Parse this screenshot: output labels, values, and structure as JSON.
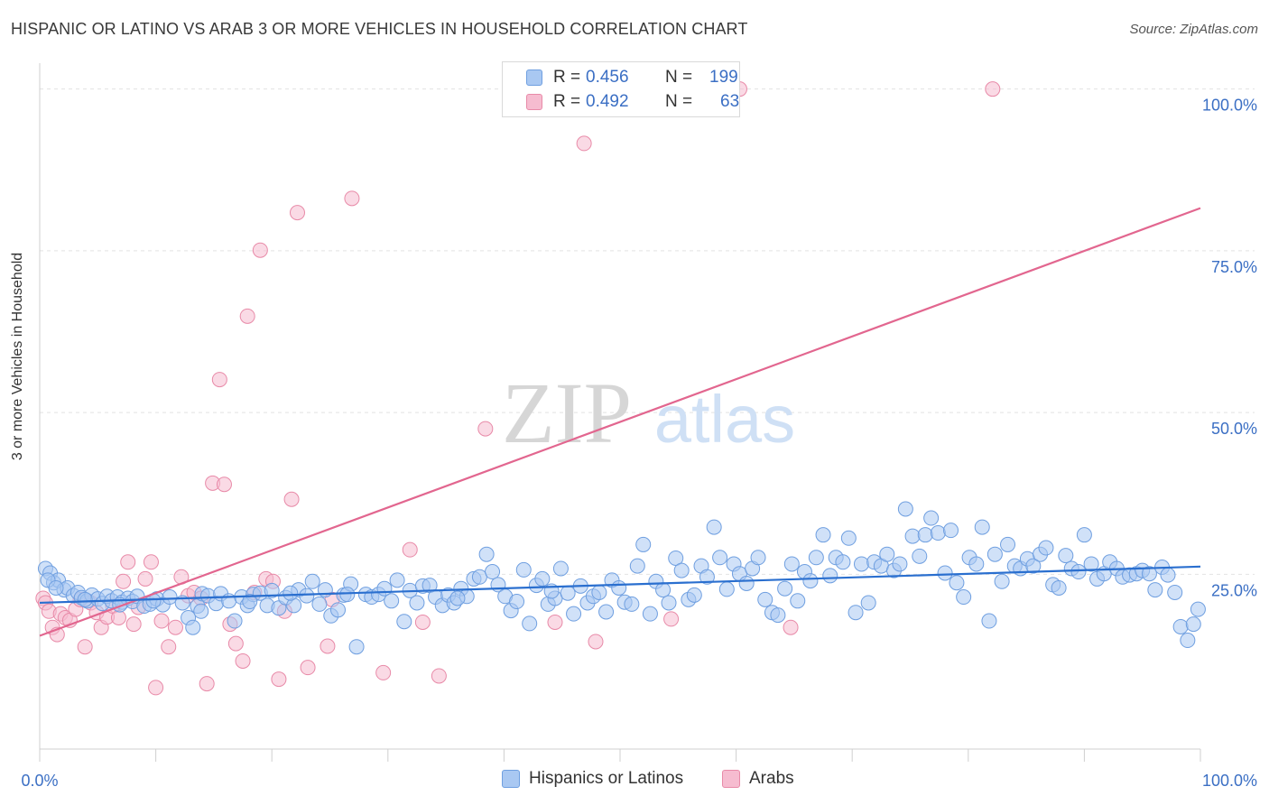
{
  "header": {
    "title": "HISPANIC OR LATINO VS ARAB 3 OR MORE VEHICLES IN HOUSEHOLD CORRELATION CHART",
    "source": "Source: ZipAtlas.com"
  },
  "legend": {
    "series": [
      {
        "r_label": "R =",
        "r_value": "0.456",
        "n_label": "N =",
        "n_value": "199"
      },
      {
        "r_label": "R =",
        "r_value": "0.492",
        "n_label": "N =",
        "n_value": "63"
      }
    ]
  },
  "bottom_legend": [
    {
      "label": "Hispanics or Latinos"
    },
    {
      "label": "Arabs"
    }
  ],
  "watermark": {
    "zip": "ZIP",
    "atlas": "atlas"
  },
  "colors": {
    "blue_fill": "#a9c8f2",
    "blue_stroke": "#6f9fe0",
    "blue_line": "#2a6fcf",
    "pink_fill": "#f6bcd0",
    "pink_stroke": "#e88aa8",
    "pink_line": "#e2668f",
    "tick_text": "#3b6fc4",
    "grid": "#e2e2e2"
  },
  "chart_data": {
    "type": "scatter",
    "title": "HISPANIC OR LATINO VS ARAB 3 OR MORE VEHICLES IN HOUSEHOLD CORRELATION CHART",
    "ylabel": "3 or more Vehicles in Household",
    "xlabel": "",
    "xlim": [
      0,
      100
    ],
    "ylim": [
      -2,
      104
    ],
    "x_tick_labels": [
      "0.0%",
      "100.0%"
    ],
    "y_ticks": [
      25,
      50,
      75,
      100
    ],
    "y_tick_labels": [
      "25.0%",
      "50.0%",
      "75.0%",
      "100.0%"
    ],
    "grid": true,
    "legend_position": "top-center",
    "series": [
      {
        "name": "Hispanics or Latinos",
        "color": "#a9c8f2",
        "trend": {
          "x": [
            0,
            100
          ],
          "y": [
            20.6,
            26.2
          ]
        },
        "points": [
          [
            0.5,
            25.9
          ],
          [
            0.9,
            25.2
          ],
          [
            1.2,
            23.7
          ],
          [
            1.6,
            24.1
          ],
          [
            2.1,
            22.6
          ],
          [
            2.4,
            22.9
          ],
          [
            2.9,
            21.7
          ],
          [
            3.3,
            22.2
          ],
          [
            3.6,
            21.4
          ],
          [
            4.1,
            20.9
          ],
          [
            4.5,
            21.8
          ],
          [
            5.0,
            21.2
          ],
          [
            5.4,
            20.5
          ],
          [
            5.8,
            21.6
          ],
          [
            6.2,
            20.9
          ],
          [
            6.7,
            21.5
          ],
          [
            7.1,
            20.7
          ],
          [
            7.6,
            21.3
          ],
          [
            8.0,
            20.8
          ],
          [
            8.4,
            21.6
          ],
          [
            9.0,
            20.1
          ],
          [
            9.5,
            20.4
          ],
          [
            10.1,
            21.2
          ],
          [
            10.6,
            20.3
          ],
          [
            11.2,
            21.5
          ],
          [
            12.3,
            20.6
          ],
          [
            12.8,
            18.3
          ],
          [
            13.2,
            16.8
          ],
          [
            13.6,
            20.1
          ],
          [
            14.0,
            22.0
          ],
          [
            14.5,
            21.7
          ],
          [
            15.2,
            20.5
          ],
          [
            15.6,
            22.0
          ],
          [
            16.3,
            20.9
          ],
          [
            16.8,
            17.8
          ],
          [
            17.4,
            21.5
          ],
          [
            17.9,
            20.2
          ],
          [
            18.4,
            21.9
          ],
          [
            19.0,
            22.1
          ],
          [
            19.6,
            20.2
          ],
          [
            20.0,
            22.5
          ],
          [
            20.6,
            19.8
          ],
          [
            21.2,
            21.4
          ],
          [
            21.9,
            20.2
          ],
          [
            22.3,
            22.6
          ],
          [
            23.0,
            21.7
          ],
          [
            23.5,
            23.9
          ],
          [
            24.1,
            20.4
          ],
          [
            24.6,
            22.6
          ],
          [
            25.1,
            18.6
          ],
          [
            25.7,
            19.5
          ],
          [
            26.2,
            21.8
          ],
          [
            26.8,
            23.5
          ],
          [
            27.3,
            13.8
          ],
          [
            28.1,
            21.9
          ],
          [
            28.6,
            21.5
          ],
          [
            29.2,
            21.9
          ],
          [
            29.7,
            22.8
          ],
          [
            30.3,
            20.9
          ],
          [
            30.8,
            24.1
          ],
          [
            31.4,
            17.7
          ],
          [
            31.9,
            22.5
          ],
          [
            32.5,
            20.6
          ],
          [
            33.0,
            23.2
          ],
          [
            33.6,
            23.3
          ],
          [
            34.1,
            21.5
          ],
          [
            34.7,
            20.2
          ],
          [
            35.2,
            21.8
          ],
          [
            35.7,
            20.6
          ],
          [
            36.3,
            22.8
          ],
          [
            36.8,
            21.6
          ],
          [
            37.4,
            24.3
          ],
          [
            37.9,
            24.6
          ],
          [
            38.5,
            28.1
          ],
          [
            39.0,
            25.4
          ],
          [
            39.5,
            23.4
          ],
          [
            40.1,
            21.6
          ],
          [
            40.6,
            19.4
          ],
          [
            41.1,
            20.8
          ],
          [
            41.7,
            25.7
          ],
          [
            42.2,
            17.4
          ],
          [
            42.8,
            23.3
          ],
          [
            43.3,
            24.3
          ],
          [
            43.8,
            20.4
          ],
          [
            44.4,
            21.3
          ],
          [
            44.9,
            25.9
          ],
          [
            45.5,
            22.1
          ],
          [
            46.0,
            18.9
          ],
          [
            46.6,
            23.2
          ],
          [
            47.2,
            20.6
          ],
          [
            47.7,
            21.6
          ],
          [
            48.2,
            22.2
          ],
          [
            48.8,
            19.2
          ],
          [
            49.3,
            24.1
          ],
          [
            49.9,
            22.9
          ],
          [
            50.4,
            20.7
          ],
          [
            51.0,
            20.4
          ],
          [
            51.5,
            26.3
          ],
          [
            52.0,
            29.6
          ],
          [
            52.6,
            18.9
          ],
          [
            53.1,
            23.9
          ],
          [
            53.7,
            22.6
          ],
          [
            54.2,
            20.6
          ],
          [
            54.8,
            27.5
          ],
          [
            55.3,
            25.6
          ],
          [
            55.9,
            21.1
          ],
          [
            56.4,
            21.8
          ],
          [
            57.0,
            26.3
          ],
          [
            57.5,
            24.6
          ],
          [
            58.1,
            32.3
          ],
          [
            58.6,
            27.6
          ],
          [
            59.2,
            22.7
          ],
          [
            59.8,
            26.6
          ],
          [
            60.3,
            25.1
          ],
          [
            60.9,
            23.6
          ],
          [
            61.4,
            25.9
          ],
          [
            61.9,
            27.6
          ],
          [
            62.5,
            21.1
          ],
          [
            63.1,
            19.1
          ],
          [
            63.6,
            18.7
          ],
          [
            64.2,
            22.8
          ],
          [
            64.8,
            26.6
          ],
          [
            65.3,
            20.9
          ],
          [
            65.9,
            25.4
          ],
          [
            66.4,
            24.0
          ],
          [
            66.9,
            27.6
          ],
          [
            67.5,
            31.1
          ],
          [
            68.1,
            24.8
          ],
          [
            68.6,
            27.6
          ],
          [
            69.2,
            26.9
          ],
          [
            69.7,
            30.6
          ],
          [
            70.3,
            19.1
          ],
          [
            70.8,
            26.6
          ],
          [
            71.4,
            20.6
          ],
          [
            71.9,
            26.9
          ],
          [
            72.5,
            26.3
          ],
          [
            73.0,
            28.1
          ],
          [
            73.6,
            25.6
          ],
          [
            74.1,
            26.6
          ],
          [
            74.6,
            35.1
          ],
          [
            75.2,
            30.9
          ],
          [
            75.8,
            27.8
          ],
          [
            76.3,
            31.1
          ],
          [
            76.8,
            33.7
          ],
          [
            77.4,
            31.4
          ],
          [
            78.0,
            25.2
          ],
          [
            78.5,
            31.8
          ],
          [
            79.0,
            23.7
          ],
          [
            79.6,
            21.5
          ],
          [
            80.1,
            27.6
          ],
          [
            80.7,
            26.6
          ],
          [
            81.2,
            32.3
          ],
          [
            81.8,
            17.8
          ],
          [
            82.3,
            28.1
          ],
          [
            82.9,
            23.9
          ],
          [
            83.4,
            29.6
          ],
          [
            84.0,
            26.3
          ],
          [
            84.5,
            25.9
          ],
          [
            85.1,
            27.4
          ],
          [
            85.6,
            26.3
          ],
          [
            86.2,
            28.1
          ],
          [
            86.7,
            29.1
          ],
          [
            87.3,
            23.4
          ],
          [
            87.8,
            22.9
          ],
          [
            88.4,
            27.9
          ],
          [
            88.9,
            25.9
          ],
          [
            89.5,
            25.4
          ],
          [
            90.0,
            31.1
          ],
          [
            90.6,
            26.6
          ],
          [
            91.1,
            24.3
          ],
          [
            91.7,
            25.1
          ],
          [
            92.2,
            26.9
          ],
          [
            92.8,
            25.9
          ],
          [
            93.3,
            24.6
          ],
          [
            93.9,
            24.9
          ],
          [
            94.5,
            25.1
          ],
          [
            95.0,
            25.6
          ],
          [
            95.6,
            25.1
          ],
          [
            96.1,
            22.6
          ],
          [
            96.7,
            26.1
          ],
          [
            97.2,
            24.9
          ],
          [
            97.8,
            22.2
          ],
          [
            98.3,
            16.9
          ],
          [
            98.9,
            14.8
          ],
          [
            99.4,
            17.3
          ],
          [
            99.8,
            19.6
          ],
          [
            0.7,
            24.1
          ],
          [
            1.4,
            22.9
          ],
          [
            3.9,
            21.1
          ],
          [
            6.9,
            20.3
          ],
          [
            9.8,
            20.9
          ],
          [
            13.9,
            19.3
          ],
          [
            18.1,
            20.8
          ],
          [
            21.6,
            22.1
          ],
          [
            26.5,
            21.9
          ],
          [
            36.0,
            21.3
          ],
          [
            44.1,
            22.4
          ]
        ]
      },
      {
        "name": "Arabs",
        "color": "#f6bcd0",
        "trend": {
          "x": [
            0,
            100
          ],
          "y": [
            15.5,
            81.6
          ]
        },
        "points": [
          [
            0.3,
            21.3
          ],
          [
            0.5,
            20.6
          ],
          [
            0.8,
            19.3
          ],
          [
            1.1,
            16.8
          ],
          [
            1.5,
            15.7
          ],
          [
            1.8,
            18.9
          ],
          [
            2.2,
            18.3
          ],
          [
            2.6,
            17.9
          ],
          [
            3.1,
            19.6
          ],
          [
            3.5,
            21.1
          ],
          [
            3.9,
            13.8
          ],
          [
            4.4,
            20.6
          ],
          [
            4.9,
            19.1
          ],
          [
            5.3,
            16.8
          ],
          [
            5.8,
            18.4
          ],
          [
            6.3,
            20.1
          ],
          [
            6.8,
            18.3
          ],
          [
            7.2,
            23.9
          ],
          [
            7.6,
            26.9
          ],
          [
            8.1,
            17.3
          ],
          [
            8.5,
            19.9
          ],
          [
            9.1,
            24.3
          ],
          [
            9.6,
            26.9
          ],
          [
            10.0,
            7.5
          ],
          [
            10.5,
            17.8
          ],
          [
            11.1,
            13.8
          ],
          [
            11.7,
            16.8
          ],
          [
            12.2,
            24.6
          ],
          [
            12.8,
            21.7
          ],
          [
            13.3,
            22.2
          ],
          [
            13.9,
            21.3
          ],
          [
            14.4,
            8.1
          ],
          [
            14.9,
            39.1
          ],
          [
            15.5,
            55.1
          ],
          [
            15.9,
            38.9
          ],
          [
            16.4,
            17.3
          ],
          [
            16.9,
            14.3
          ],
          [
            17.5,
            11.6
          ],
          [
            17.9,
            64.9
          ],
          [
            18.5,
            22.2
          ],
          [
            19.0,
            75.1
          ],
          [
            19.5,
            24.3
          ],
          [
            20.1,
            23.9
          ],
          [
            20.6,
            8.8
          ],
          [
            21.1,
            19.3
          ],
          [
            21.7,
            36.6
          ],
          [
            22.2,
            80.9
          ],
          [
            23.1,
            10.6
          ],
          [
            24.8,
            13.9
          ],
          [
            25.2,
            21.1
          ],
          [
            26.9,
            83.1
          ],
          [
            29.6,
            9.8
          ],
          [
            31.9,
            28.8
          ],
          [
            33.0,
            17.6
          ],
          [
            34.4,
            9.3
          ],
          [
            38.4,
            47.5
          ],
          [
            44.4,
            17.6
          ],
          [
            46.9,
            91.6
          ],
          [
            47.9,
            14.6
          ],
          [
            54.4,
            18.1
          ],
          [
            60.3,
            100.0
          ],
          [
            64.7,
            16.8
          ],
          [
            82.1,
            100.0
          ]
        ]
      }
    ]
  }
}
